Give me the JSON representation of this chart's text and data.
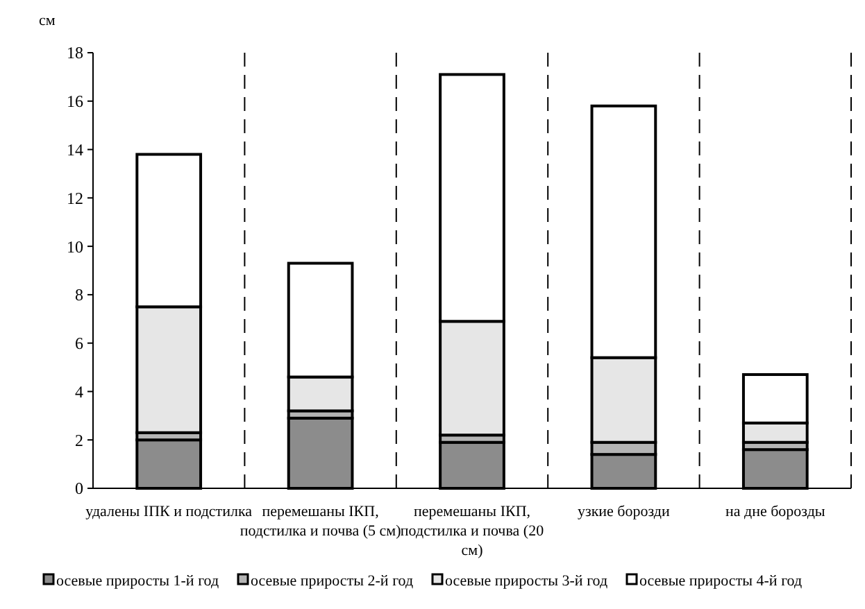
{
  "chart_data": {
    "type": "bar",
    "stacked": true,
    "ylabel": "см",
    "categories": [
      "удалены ІПК и подстилка",
      "перемешаны ІКП, подстилка и почва (5 см)",
      "перемешаны ІКП, подстилка и почва (20 см)",
      "узкие борозди",
      "на дне борозды"
    ],
    "series": [
      {
        "name": "осевые приросты 1-й год",
        "color": "#8c8c8c",
        "values": [
          2.0,
          2.9,
          1.9,
          1.4,
          1.6
        ]
      },
      {
        "name": "осевые приросты 2-й год",
        "color": "#b4b4b4",
        "values": [
          0.3,
          0.3,
          0.3,
          0.5,
          0.3
        ]
      },
      {
        "name": "осевые приросты 3-й год",
        "color": "#e6e6e6",
        "values": [
          5.2,
          1.4,
          4.7,
          3.5,
          0.8
        ]
      },
      {
        "name": "осевые приросты 4-й год",
        "color": "#ffffff",
        "values": [
          6.3,
          4.7,
          10.2,
          10.4,
          2.0
        ]
      }
    ],
    "ylim": [
      0,
      18
    ],
    "yticks": [
      0,
      2,
      4,
      6,
      8,
      10,
      12,
      14,
      16,
      18
    ],
    "grid": "x",
    "legend": "bottom"
  }
}
